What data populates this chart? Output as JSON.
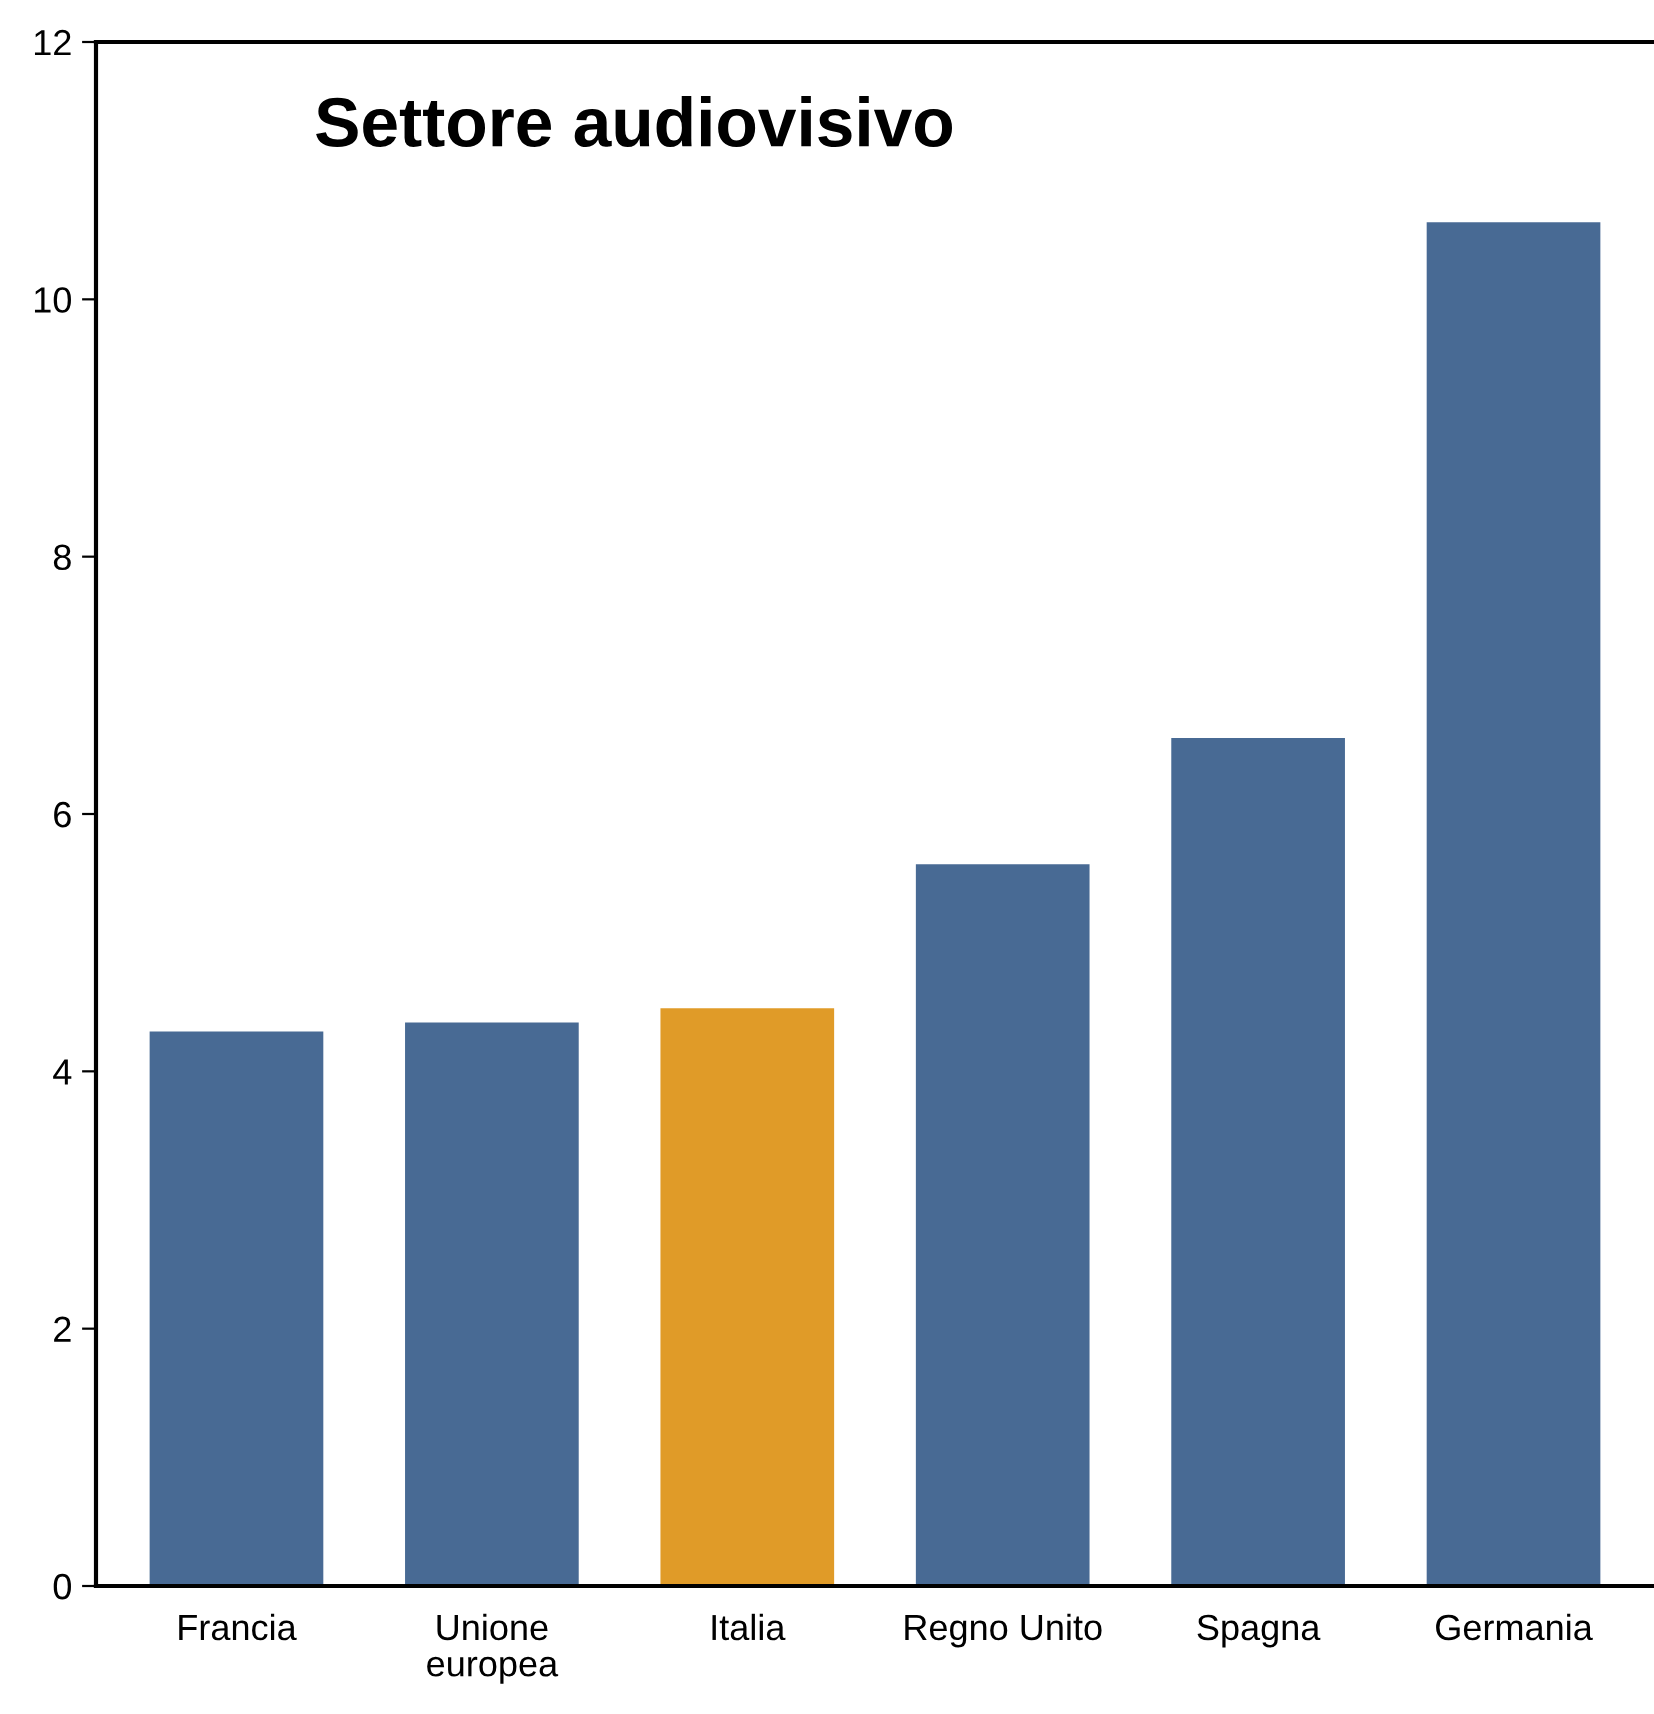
{
  "chart_data": {
    "type": "bar",
    "title": "Settore audiovisivo",
    "categories": [
      "Francia",
      "Unione\neuropea",
      "Italia",
      "Regno Unito",
      "Spagna",
      "Germania"
    ],
    "values": [
      4.31,
      4.38,
      4.49,
      5.61,
      6.59,
      10.6
    ],
    "colors": [
      "#486a94",
      "#486a94",
      "#e09b28",
      "#486a94",
      "#486a94",
      "#486a94"
    ],
    "ylim": [
      0,
      12
    ],
    "yticks": [
      0,
      2,
      4,
      6,
      8,
      10,
      12
    ],
    "grid": false,
    "legend": false
  }
}
